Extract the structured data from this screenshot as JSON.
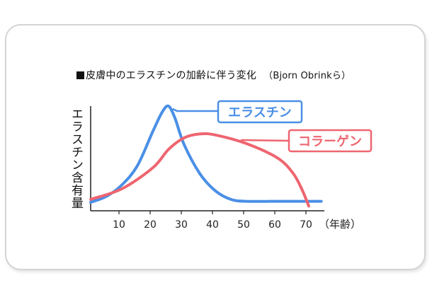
{
  "chart_data": {
    "type": "line",
    "title": "皮膚中のエラスチンの加齢に伴う変化",
    "source": "（Bjorn Obrinkら）",
    "ylabel": "エラスチン含有量",
    "x_unit_label": "（年齢）",
    "x_ticks": [
      10,
      20,
      30,
      40,
      50,
      60,
      70
    ],
    "xlim": [
      0,
      75
    ],
    "ylim": [
      0,
      100
    ],
    "y_ticks_shown": false,
    "grid": false,
    "legend": "inline labels at upper right",
    "series": [
      {
        "name": "エラスチン",
        "color": "#4a8fe6",
        "label_box_color": "#4a8fe6",
        "x": [
          0,
          5,
          10,
          15,
          20,
          23,
          25,
          27,
          30,
          35,
          40,
          45,
          50,
          60,
          70,
          74
        ],
        "y": [
          0,
          6,
          18,
          38,
          74,
          94,
          100,
          88,
          60,
          30,
          12,
          3,
          1,
          1,
          1,
          1
        ]
      },
      {
        "name": "コラーゲン",
        "color": "#ee6570",
        "label_box_color": "#ee6570",
        "x": [
          0,
          10,
          20,
          25,
          30,
          35,
          40,
          50,
          60,
          65,
          68,
          70
        ],
        "y": [
          3,
          14,
          36,
          55,
          67,
          71,
          70,
          61,
          46,
          30,
          12,
          -4
        ]
      }
    ]
  }
}
